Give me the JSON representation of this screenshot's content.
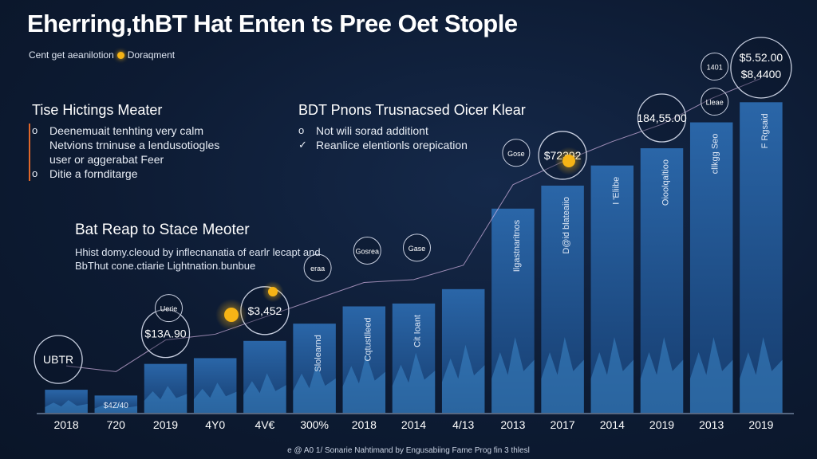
{
  "header": {
    "title": "Eherring,thBT Hat Enten ts Pree Oet Stople",
    "subtitle_left": "Cent get aeanilotion",
    "subtitle_right": "Doraqment"
  },
  "left_panel": {
    "heading": "Tise Hictings Meater",
    "items": [
      {
        "marker": "o",
        "text": "Deenemuait tenhting very calm"
      },
      {
        "marker": "",
        "text": "Netvions trninuse a lendusotiogles"
      },
      {
        "marker": "",
        "text": "user or aggerabat Feer"
      },
      {
        "marker": "o",
        "text": "Ditie a fornditarge"
      }
    ]
  },
  "right_panel": {
    "heading": "BDT Pnons Trusnacsed Oicer Klear",
    "items": [
      {
        "marker": "o",
        "text": "Not wili sorad additiont"
      },
      {
        "marker": "✓",
        "text": "Reanlice elentionls orepication"
      }
    ]
  },
  "mid_panel": {
    "heading": "Bat Reap to Stace Meoter",
    "line1": "Hhist domy.cleoud by inflecnanatia of earlr lecapt and",
    "line2": "BbThut cone.ctiarie Lightnation.bunbue"
  },
  "footer": "e @ A0 1/ Sonarie Nahtimand by Engusabiing Fame Prog fin 3 thlesl",
  "colors": {
    "background": "#0d1b33",
    "bar_top": "#2a66a8",
    "bar_bottom": "#163c6e",
    "mountain": "#3c86c8",
    "bubble_stroke": "#c8cfe0",
    "accent_bulb": "#f6b416"
  },
  "chart_data": {
    "type": "bar",
    "categories": [
      "2018",
      "720",
      "2019",
      "4Y0",
      "4V€",
      "300%",
      "2018",
      "2014",
      "4/13",
      "2013",
      "2017",
      "2014",
      "2019",
      "2013",
      "2019"
    ],
    "values": [
      8,
      6,
      17,
      19,
      25,
      31,
      37,
      38,
      43,
      71,
      79,
      86,
      92,
      101,
      108
    ],
    "ylim": [
      0,
      120
    ],
    "bar_labels": [
      "",
      "",
      "",
      "",
      "",
      "Slolearnd",
      "Cqtustlleed",
      "Cit Ioant",
      "",
      "Ilgastnaritnos",
      "D@id blateaiio",
      "I 'Eliibe",
      "Oioolqaltioo",
      "cllkgg Seo",
      "F Rgsaid"
    ],
    "callouts": [
      {
        "text": "UBTR",
        "bar": 0
      },
      {
        "text": "$13A.90",
        "bar": 2
      },
      {
        "text": "$3,452",
        "bar": 4
      },
      {
        "text": "$72392",
        "bar": 10
      },
      {
        "text": "184,55.00",
        "bar": 12
      },
      {
        "text": "$5.52.00",
        "bar": 14
      },
      {
        "text": "$8,4400",
        "bar": 14
      }
    ],
    "small_callouts": [
      {
        "text": "Uerie",
        "bar": 2
      },
      {
        "text": "eraa",
        "bar": 5
      },
      {
        "text": "Gosrea",
        "bar": 6
      },
      {
        "text": "Gase",
        "bar": 7
      },
      {
        "text": "Gose",
        "bar": 9
      },
      {
        "text": "1401",
        "bar": 13
      },
      {
        "text": "Lleae",
        "bar": 13
      }
    ],
    "bar_base_label": "$4Z/40"
  }
}
